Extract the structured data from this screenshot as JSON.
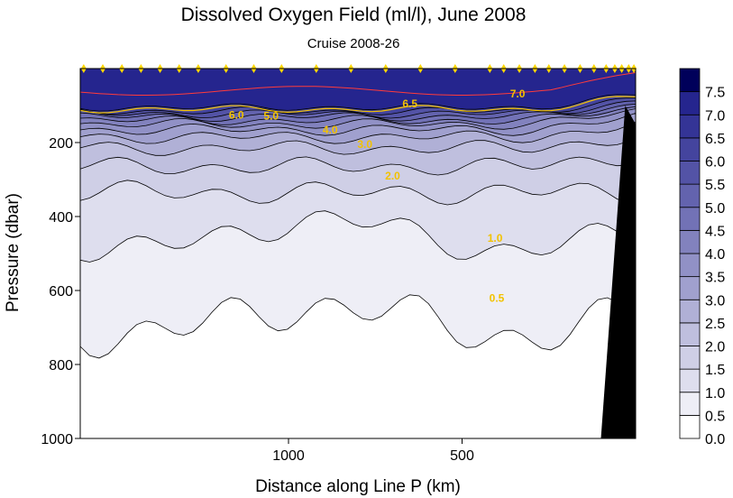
{
  "chart_data": {
    "type": "contour",
    "title": "Dissolved Oxygen Field (ml/l),  June 2008",
    "subtitle": "Cruise 2008-26",
    "xlabel": "Distance along Line P  (km)",
    "ylabel": "Pressure  (dbar)",
    "x_axis": {
      "range": [
        1600,
        0
      ],
      "reversed": true,
      "ticks": [
        1000,
        500
      ]
    },
    "y_axis": {
      "range": [
        0,
        1000
      ],
      "reversed": true,
      "ticks": [
        200,
        400,
        600,
        800,
        1000
      ]
    },
    "colorbar": {
      "levels": [
        0.0,
        0.5,
        1.0,
        1.5,
        2.0,
        2.5,
        3.0,
        3.5,
        4.0,
        4.5,
        5.0,
        5.5,
        6.0,
        6.5,
        7.0,
        7.5
      ],
      "colors": [
        "#ffffff",
        "#eeeef6",
        "#dedeee",
        "#cfcfe6",
        "#bfbfde",
        "#b0b0d6",
        "#a0a0ce",
        "#9191c6",
        "#8282be",
        "#7272b6",
        "#6363ae",
        "#5353a6",
        "#44449e",
        "#343496",
        "#25258e",
        "#00005a"
      ]
    },
    "contour_labels": [
      "6.0",
      "5.0",
      "6.5",
      "7.0",
      "4.0",
      "3.0",
      "2.0",
      "1.0",
      "0.5"
    ],
    "stations_km": [
      1590,
      1535,
      1480,
      1425,
      1370,
      1315,
      1260,
      1180,
      1100,
      1020,
      920,
      820,
      720,
      620,
      520,
      420,
      380,
      335,
      290,
      250,
      205,
      160,
      120,
      85,
      60,
      40,
      20,
      5
    ],
    "station_marker_color": "#ffd700"
  }
}
